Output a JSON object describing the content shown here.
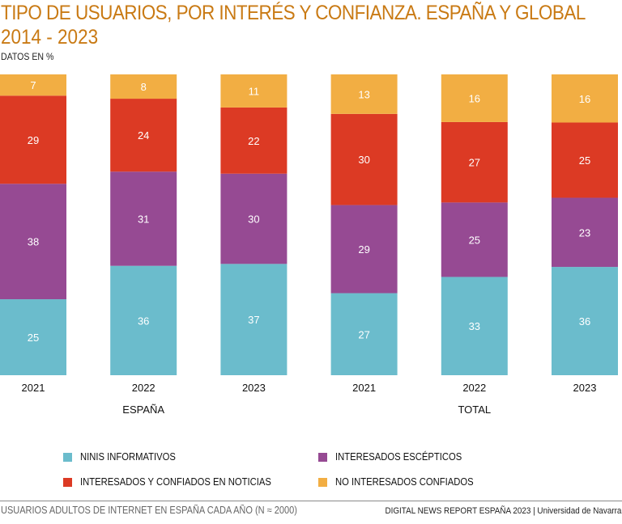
{
  "chart_data": {
    "type": "bar",
    "stacked": true,
    "title": "TIPO DE USUARIOS, POR INTERÉS Y CONFIANZA. ESPAÑA Y GLOBAL",
    "subtitle": "2014 - 2023",
    "units_label": "DATOS EN %",
    "xlabel": "",
    "ylabel": "",
    "ylim": [
      0,
      100
    ],
    "grid": false,
    "categories": [
      "2021",
      "2022",
      "2023",
      "2021",
      "2022",
      "2023"
    ],
    "groups": [
      {
        "label": "ESPAÑA",
        "categories": [
          0,
          1,
          2
        ]
      },
      {
        "label": "TOTAL",
        "categories": [
          3,
          4,
          5
        ]
      }
    ],
    "series": [
      {
        "name": "NINIS INFORMATIVOS",
        "color": "#6bbccc",
        "values": [
          25,
          36,
          37,
          27,
          33,
          36
        ]
      },
      {
        "name": "INTERESADOS ESCÉPTICOS",
        "color": "#964a93",
        "values": [
          38,
          31,
          30,
          29,
          25,
          23
        ]
      },
      {
        "name": "INTERESADOS Y CONFIADOS EN NOTICIAS",
        "color": "#dc3a24",
        "values": [
          29,
          24,
          22,
          30,
          27,
          25
        ]
      },
      {
        "name": "NO INTERESADOS CONFIADOS",
        "color": "#f2ae43",
        "values": [
          7,
          8,
          11,
          13,
          16,
          16
        ]
      }
    ],
    "legend": {
      "placement": "bottom",
      "order": [
        "NINIS INFORMATIVOS",
        "INTERESADOS ESCÉPTICOS",
        "INTERESADOS Y CONFIADOS EN NOTICIAS",
        "NO INTERESADOS CONFIADOS"
      ]
    }
  },
  "footer": {
    "source_note": "USUARIOS ADULTOS DE INTERNET EN ESPAÑA CADA AÑO (N ≈ 2000)",
    "credit": "DIGITAL NEWS REPORT ESPAÑA 2023 | Universidad de Navarra"
  }
}
